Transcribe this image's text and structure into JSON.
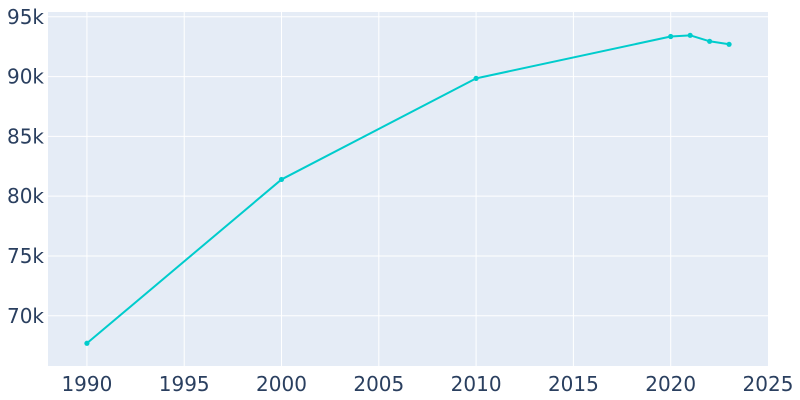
{
  "chart_data": {
    "type": "line",
    "title": "",
    "xlabel": "",
    "ylabel": "",
    "xlim": [
      1988,
      2025
    ],
    "ylim": [
      65800,
      95400
    ],
    "grid": true,
    "legend": "none",
    "colors": {
      "plot_background": "#e5ecf6",
      "gridline": "#ffffff",
      "line": "#00cccc",
      "tick_text": "#2a3f5f"
    },
    "x_ticks": [
      {
        "value": 1990,
        "label": "1990"
      },
      {
        "value": 1995,
        "label": "1995"
      },
      {
        "value": 2000,
        "label": "2000"
      },
      {
        "value": 2005,
        "label": "2005"
      },
      {
        "value": 2010,
        "label": "2010"
      },
      {
        "value": 2015,
        "label": "2015"
      },
      {
        "value": 2020,
        "label": "2020"
      },
      {
        "value": 2025,
        "label": "2025"
      }
    ],
    "y_ticks": [
      {
        "value": 70000,
        "label": "70k"
      },
      {
        "value": 75000,
        "label": "75k"
      },
      {
        "value": 80000,
        "label": "80k"
      },
      {
        "value": 85000,
        "label": "85k"
      },
      {
        "value": 90000,
        "label": "90k"
      },
      {
        "value": 95000,
        "label": "95k"
      }
    ],
    "series": [
      {
        "x": [
          1990,
          2000,
          2010,
          2020,
          2021,
          2022,
          2023
        ],
        "y": [
          67700,
          81400,
          89850,
          93350,
          93450,
          92950,
          92700
        ]
      }
    ]
  }
}
